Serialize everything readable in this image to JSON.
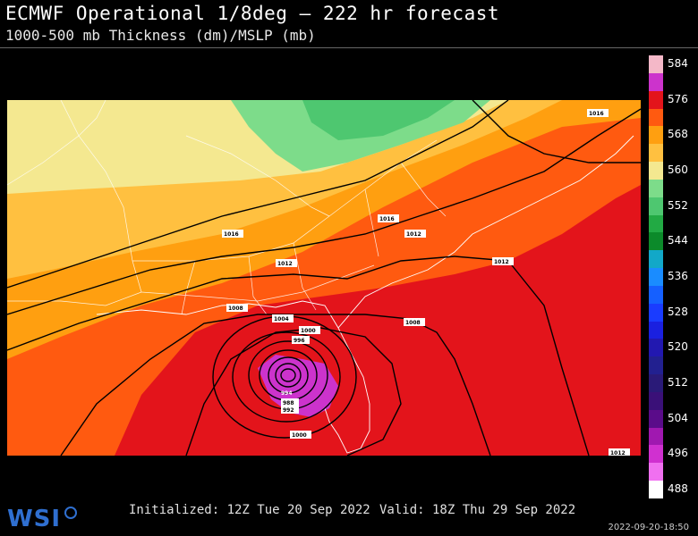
{
  "header": {
    "title": "ECMWF Operational 1/8deg — 222 hr forecast",
    "subtitle": "1000-500 mb Thickness (dm)/MSLP (mb)"
  },
  "colorbar": {
    "labels": [
      "584",
      "576",
      "568",
      "560",
      "552",
      "544",
      "536",
      "528",
      "520",
      "512",
      "504",
      "496",
      "488"
    ],
    "colors": {
      "584": "#f4b8c8",
      "580": "#cc33cc",
      "576": "#e3141b",
      "572": "#ff5a10",
      "568": "#ff9f10",
      "564": "#ffc040",
      "560": "#f4e890",
      "556": "#7ddc8a",
      "552": "#4ec770",
      "548": "#22aa44",
      "544": "#0c8a2a",
      "540": "#12a8c8",
      "536": "#1a8cff",
      "532": "#1560ff",
      "528": "#1a3cff",
      "524": "#1a20e0",
      "520": "#2218b0",
      "516": "#222090",
      "512": "#2a1a78",
      "508": "#3a1078",
      "504": "#5a0c8a",
      "500": "#a018b0",
      "496": "#d030d0",
      "492": "#f070f0",
      "488": "#ffffff"
    }
  },
  "isobars": {
    "labels": [
      "1016",
      "1016",
      "1016",
      "1012",
      "1012",
      "1012",
      "1008",
      "1008",
      "1004",
      "1000",
      "996",
      "994",
      "988",
      "992",
      "1000",
      "1012"
    ]
  },
  "footer": {
    "brand": "WSI",
    "initialized": "Initialized: 12Z Tue 20 Sep 2022",
    "valid": "Valid: 18Z Thu 29 Sep 2022",
    "timestamp": "2022-09-20-18:50"
  },
  "map_data": {
    "region": "Southeastern United States",
    "field": "1000-500 mb thickness (dm) shaded, MSLP (mb) contours",
    "storm_center_min_pressure_label": "988"
  }
}
